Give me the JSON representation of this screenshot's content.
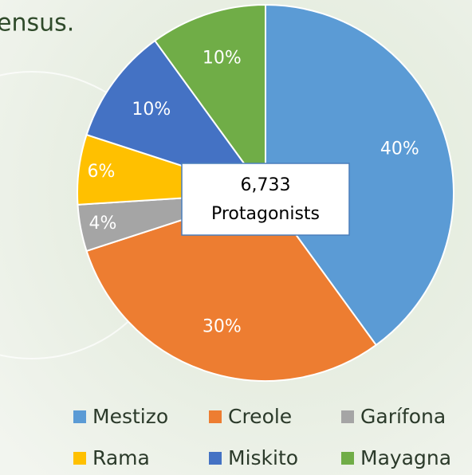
{
  "chart_data": {
    "type": "pie",
    "caption": "ensus.",
    "annotation": [
      "6,733",
      "Protagonists"
    ],
    "categories": [
      "Mestizo",
      "Creole",
      "Garífona",
      "Rama",
      "Miskito",
      "Mayagna"
    ],
    "values": [
      40,
      30,
      4,
      6,
      10,
      10
    ],
    "value_labels": [
      "40%",
      "30%",
      "4%",
      "6%",
      "10%",
      "10%"
    ],
    "colors": [
      "#5b9bd5",
      "#ed7d31",
      "#a5a5a5",
      "#ffc000",
      "#4472c4",
      "#70ad47"
    ],
    "legend": "bottom"
  }
}
